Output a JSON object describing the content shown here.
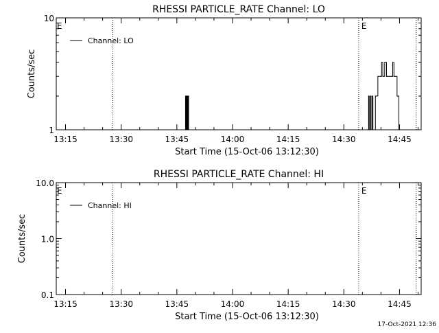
{
  "footer_timestamp": "17-Oct-2021 12:36",
  "chart_data": [
    {
      "type": "line",
      "title": "RHESSI PARTICLE_RATE Channel: LO",
      "xlabel": "Start Time (15-Oct-06 13:12:30)",
      "ylabel": "Counts/sec",
      "xscale": "time",
      "yscale": "log",
      "xlim": [
        "13:12:30",
        "14:50:50"
      ],
      "ylim": [
        1,
        10
      ],
      "xticks": [
        "13:15",
        "13:30",
        "13:45",
        "14:00",
        "14:15",
        "14:30",
        "14:45"
      ],
      "yticks": [
        {
          "value": 1,
          "label": "1"
        },
        {
          "value": 10,
          "label": "10"
        }
      ],
      "legend": {
        "position": "top-left",
        "entries": [
          "Channel: LO"
        ]
      },
      "markers": [
        {
          "time": "13:27:45",
          "label": ""
        },
        {
          "time": "14:34:00",
          "label": "E"
        },
        {
          "time": "14:49:30",
          "label": ""
        }
      ],
      "edge_labels": [
        "E"
      ],
      "series": [
        {
          "name": "Channel: LO",
          "x": [
            "13:47:10",
            "13:47:20",
            "13:47:30",
            "13:47:40",
            "13:47:50",
            "13:48:00",
            "13:48:10",
            "14:36:20",
            "14:36:40",
            "14:36:50",
            "14:37:10",
            "14:37:20",
            "14:37:40",
            "14:37:50",
            "14:38:30",
            "14:39:10",
            "14:39:50",
            "14:40:10",
            "14:40:30",
            "14:41:00",
            "14:41:30",
            "14:41:50",
            "14:42:20",
            "14:42:50",
            "14:43:10",
            "14:43:30",
            "14:43:50",
            "14:44:20",
            "14:44:50"
          ],
          "values": [
            1,
            2,
            1,
            2,
            1,
            2,
            1,
            1,
            2,
            1,
            2,
            1,
            2,
            1,
            2,
            3,
            3,
            4,
            3,
            4,
            3,
            3,
            3,
            3,
            4,
            3,
            3,
            2,
            1
          ]
        }
      ]
    },
    {
      "type": "line",
      "title": "RHESSI PARTICLE_RATE Channel: HI",
      "xlabel": "Start Time (15-Oct-06 13:12:30)",
      "ylabel": "Counts/sec",
      "xscale": "time",
      "yscale": "log",
      "xlim": [
        "13:12:30",
        "14:50:50"
      ],
      "ylim": [
        0.1,
        10
      ],
      "xticks": [
        "13:15",
        "13:30",
        "13:45",
        "14:00",
        "14:15",
        "14:30",
        "14:45"
      ],
      "yticks": [
        {
          "value": 0.1,
          "label": "0.1"
        },
        {
          "value": 1,
          "label": "1.0"
        },
        {
          "value": 10,
          "label": "10.0"
        }
      ],
      "legend": {
        "position": "top-left",
        "entries": [
          "Channel: HI"
        ]
      },
      "markers": [
        {
          "time": "13:27:45",
          "label": ""
        },
        {
          "time": "14:34:00",
          "label": "E"
        },
        {
          "time": "14:49:30",
          "label": ""
        }
      ],
      "edge_labels": [
        "E"
      ],
      "series": [
        {
          "name": "Channel: HI",
          "x": [],
          "values": []
        }
      ]
    }
  ]
}
